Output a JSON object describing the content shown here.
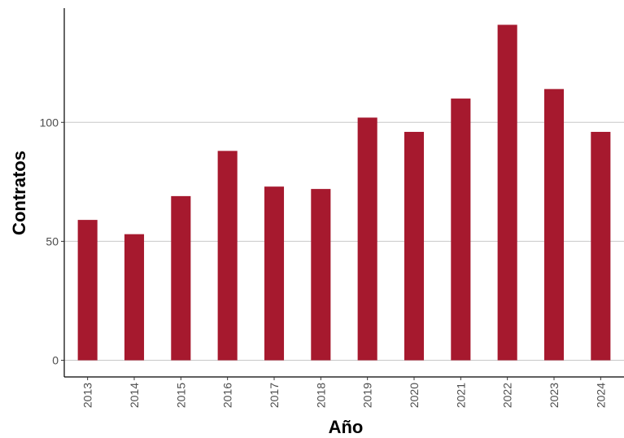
{
  "chart_data": {
    "type": "bar",
    "title": "",
    "xlabel": "Año",
    "ylabel": "Contratos",
    "categories": [
      "2013",
      "2014",
      "2015",
      "2016",
      "2017",
      "2018",
      "2019",
      "2020",
      "2021",
      "2022",
      "2023",
      "2024"
    ],
    "values": [
      59,
      53,
      69,
      88,
      73,
      72,
      102,
      96,
      110,
      141,
      114,
      96
    ],
    "ylim": [
      -7,
      148
    ],
    "yticks": [
      0,
      50,
      100
    ],
    "grid": "horizontal",
    "legend": "none",
    "bar_color": "#A6192E",
    "grid_color": "#c8c8c8"
  }
}
